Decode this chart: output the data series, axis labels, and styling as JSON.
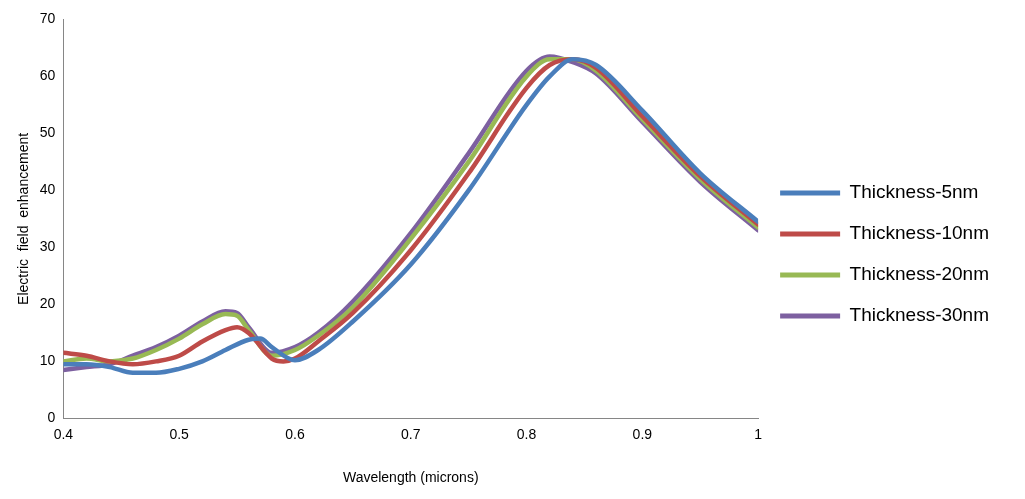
{
  "chart_data": {
    "type": "line",
    "xlabel": "Wavelength (microns)",
    "ylabel": "Electric  field  enhancement",
    "xlim": [
      0.4,
      1
    ],
    "xticks": [
      0.4,
      0.5,
      0.6,
      0.7,
      0.8,
      0.9,
      1
    ],
    "ylim": [
      0,
      70
    ],
    "yticks": [
      0,
      10,
      20,
      30,
      40,
      50,
      60,
      70
    ],
    "grid": false,
    "legend": "right",
    "marker": "none",
    "line_style": "solid",
    "series": [
      {
        "name": "Thickness-5nm",
        "color": "#4a7ebb",
        "x": [
          0.4,
          0.42,
          0.44,
          0.46,
          0.48,
          0.5,
          0.52,
          0.54,
          0.56,
          0.57,
          0.58,
          0.6,
          0.62,
          0.65,
          0.7,
          0.75,
          0.8,
          0.82,
          0.84,
          0.86,
          0.9,
          0.95,
          1
        ],
        "values": [
          9.5,
          9.5,
          9,
          8,
          8,
          8.7,
          10,
          12,
          13.8,
          14,
          12.5,
          10.2,
          12,
          17,
          27,
          40,
          55,
          60,
          63,
          62,
          54,
          43,
          34.5
        ]
      },
      {
        "name": "Thickness-10nm",
        "color": "#be4b48",
        "x": [
          0.4,
          0.42,
          0.44,
          0.46,
          0.48,
          0.5,
          0.52,
          0.54,
          0.55,
          0.56,
          0.58,
          0.59,
          0.6,
          0.62,
          0.65,
          0.7,
          0.75,
          0.8,
          0.82,
          0.84,
          0.86,
          0.9,
          0.95,
          1
        ],
        "values": [
          11.5,
          11,
          10,
          9.5,
          10,
          11,
          13.5,
          15.5,
          16,
          15,
          10.5,
          10,
          10.5,
          13.5,
          18.5,
          29.5,
          43,
          58,
          62,
          63,
          61.5,
          53,
          42.5,
          34
        ]
      },
      {
        "name": "Thickness-20nm",
        "color": "#98b954",
        "x": [
          0.4,
          0.42,
          0.44,
          0.46,
          0.48,
          0.5,
          0.52,
          0.54,
          0.55,
          0.56,
          0.58,
          0.6,
          0.62,
          0.65,
          0.7,
          0.75,
          0.8,
          0.82,
          0.84,
          0.86,
          0.9,
          0.95,
          1
        ],
        "values": [
          10,
          10.5,
          10,
          10.5,
          12,
          14,
          16.5,
          18.3,
          18,
          15.5,
          11,
          12,
          14.5,
          19.5,
          31.5,
          45,
          60,
          63,
          63,
          61,
          52.5,
          42,
          33.5
        ]
      },
      {
        "name": "Thickness-30nm",
        "color": "#7d60a0",
        "x": [
          0.4,
          0.42,
          0.44,
          0.46,
          0.48,
          0.5,
          0.52,
          0.54,
          0.55,
          0.56,
          0.58,
          0.6,
          0.62,
          0.65,
          0.7,
          0.75,
          0.8,
          0.82,
          0.84,
          0.86,
          0.9,
          0.95,
          1
        ],
        "values": [
          8.5,
          9,
          9.5,
          11,
          12.5,
          14.5,
          17,
          18.8,
          18.5,
          16,
          11.5,
          12.5,
          15,
          20.5,
          32.5,
          46.5,
          61,
          63.5,
          62.5,
          60.5,
          52,
          41.5,
          33
        ]
      }
    ]
  }
}
